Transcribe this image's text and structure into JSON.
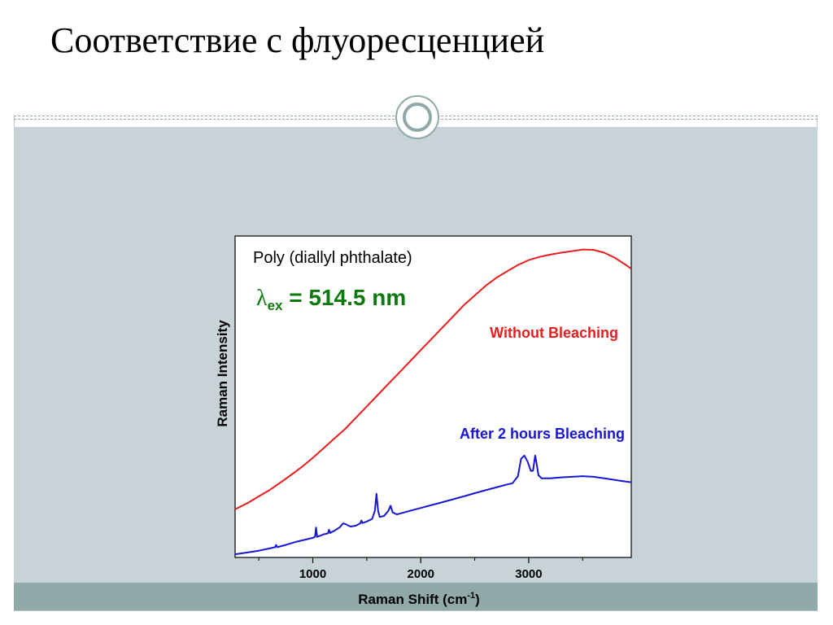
{
  "slide": {
    "title": "Соответствие с флуоресценцией"
  },
  "colors": {
    "accent": "#8faaa9",
    "panel": "#c8d3d7",
    "series_without": "#e81d1d",
    "series_after": "#1616d4",
    "excitation_label": "#0a7a0a"
  },
  "chart_data": {
    "type": "line",
    "title": "Poly (diallyl phthalate)",
    "annotation": {
      "symbol": "λ",
      "subscript": "ex",
      "text": " = 514.5 nm"
    },
    "xlabel": "Raman Shift (cm",
    "xlabel_sup": "-1",
    "xlabel_end": ")",
    "ylabel": "Raman Intensity",
    "xlim": [
      280,
      3950
    ],
    "ylim": [
      0,
      100
    ],
    "xticks": [
      1000,
      2000,
      3000
    ],
    "xtick_labels": [
      "1000",
      "2000",
      "3000"
    ],
    "minor_xticks": [
      500,
      1500,
      2500,
      3500
    ],
    "grid": false,
    "series": [
      {
        "name": "Without Bleaching",
        "color": "#e81d1d",
        "points": [
          [
            280,
            15.0
          ],
          [
            400,
            17.0
          ],
          [
            500,
            19.0
          ],
          [
            600,
            21.0
          ],
          [
            700,
            23.3
          ],
          [
            800,
            25.7
          ],
          [
            900,
            28.2
          ],
          [
            1000,
            31.0
          ],
          [
            1100,
            34.0
          ],
          [
            1200,
            37.0
          ],
          [
            1300,
            40.0
          ],
          [
            1400,
            43.5
          ],
          [
            1500,
            47.0
          ],
          [
            1600,
            50.5
          ],
          [
            1700,
            54.0
          ],
          [
            1800,
            57.5
          ],
          [
            1900,
            61.0
          ],
          [
            2000,
            64.5
          ],
          [
            2100,
            68.0
          ],
          [
            2200,
            71.5
          ],
          [
            2300,
            75.0
          ],
          [
            2400,
            78.5
          ],
          [
            2500,
            81.5
          ],
          [
            2600,
            84.5
          ],
          [
            2700,
            87.0
          ],
          [
            2800,
            89.0
          ],
          [
            2900,
            91.0
          ],
          [
            3000,
            92.5
          ],
          [
            3100,
            93.5
          ],
          [
            3200,
            94.2
          ],
          [
            3300,
            94.8
          ],
          [
            3400,
            95.3
          ],
          [
            3500,
            95.8
          ],
          [
            3600,
            95.7
          ],
          [
            3700,
            94.8
          ],
          [
            3800,
            93.2
          ],
          [
            3900,
            91.0
          ],
          [
            3950,
            89.8
          ]
        ]
      },
      {
        "name": "After 2 hours Bleaching",
        "color": "#1616d4",
        "points": [
          [
            280,
            1.0
          ],
          [
            400,
            1.6
          ],
          [
            500,
            2.1
          ],
          [
            600,
            2.8
          ],
          [
            650,
            3.2
          ],
          [
            660,
            3.9
          ],
          [
            670,
            3.2
          ],
          [
            750,
            3.9
          ],
          [
            850,
            4.9
          ],
          [
            950,
            5.7
          ],
          [
            1000,
            6.1
          ],
          [
            1020,
            6.4
          ],
          [
            1030,
            9.3
          ],
          [
            1040,
            6.4
          ],
          [
            1080,
            6.9
          ],
          [
            1100,
            7.2
          ],
          [
            1140,
            7.5
          ],
          [
            1150,
            8.6
          ],
          [
            1160,
            7.6
          ],
          [
            1180,
            8.0
          ],
          [
            1200,
            8.3
          ],
          [
            1250,
            9.4
          ],
          [
            1280,
            10.6
          ],
          [
            1300,
            10.4
          ],
          [
            1350,
            9.6
          ],
          [
            1400,
            9.9
          ],
          [
            1440,
            10.6
          ],
          [
            1450,
            11.5
          ],
          [
            1460,
            10.7
          ],
          [
            1500,
            11.2
          ],
          [
            1550,
            12.0
          ],
          [
            1575,
            14.5
          ],
          [
            1590,
            19.8
          ],
          [
            1605,
            14.5
          ],
          [
            1620,
            12.6
          ],
          [
            1660,
            12.9
          ],
          [
            1700,
            14.5
          ],
          [
            1720,
            16.1
          ],
          [
            1740,
            14.0
          ],
          [
            1780,
            13.4
          ],
          [
            1800,
            13.6
          ],
          [
            1900,
            14.5
          ],
          [
            2000,
            15.4
          ],
          [
            2100,
            16.3
          ],
          [
            2200,
            17.2
          ],
          [
            2300,
            18.1
          ],
          [
            2400,
            19.0
          ],
          [
            2500,
            20.0
          ],
          [
            2600,
            20.9
          ],
          [
            2700,
            21.8
          ],
          [
            2800,
            22.7
          ],
          [
            2850,
            23.1
          ],
          [
            2900,
            25.3
          ],
          [
            2930,
            30.7
          ],
          [
            2960,
            31.7
          ],
          [
            2990,
            29.8
          ],
          [
            3020,
            26.9
          ],
          [
            3040,
            27.0
          ],
          [
            3060,
            31.7
          ],
          [
            3075,
            28.8
          ],
          [
            3090,
            25.6
          ],
          [
            3120,
            24.6
          ],
          [
            3200,
            24.6
          ],
          [
            3300,
            24.9
          ],
          [
            3400,
            25.1
          ],
          [
            3500,
            25.3
          ],
          [
            3600,
            25.1
          ],
          [
            3700,
            24.6
          ],
          [
            3800,
            24.1
          ],
          [
            3900,
            23.6
          ],
          [
            3950,
            23.4
          ]
        ]
      }
    ]
  }
}
